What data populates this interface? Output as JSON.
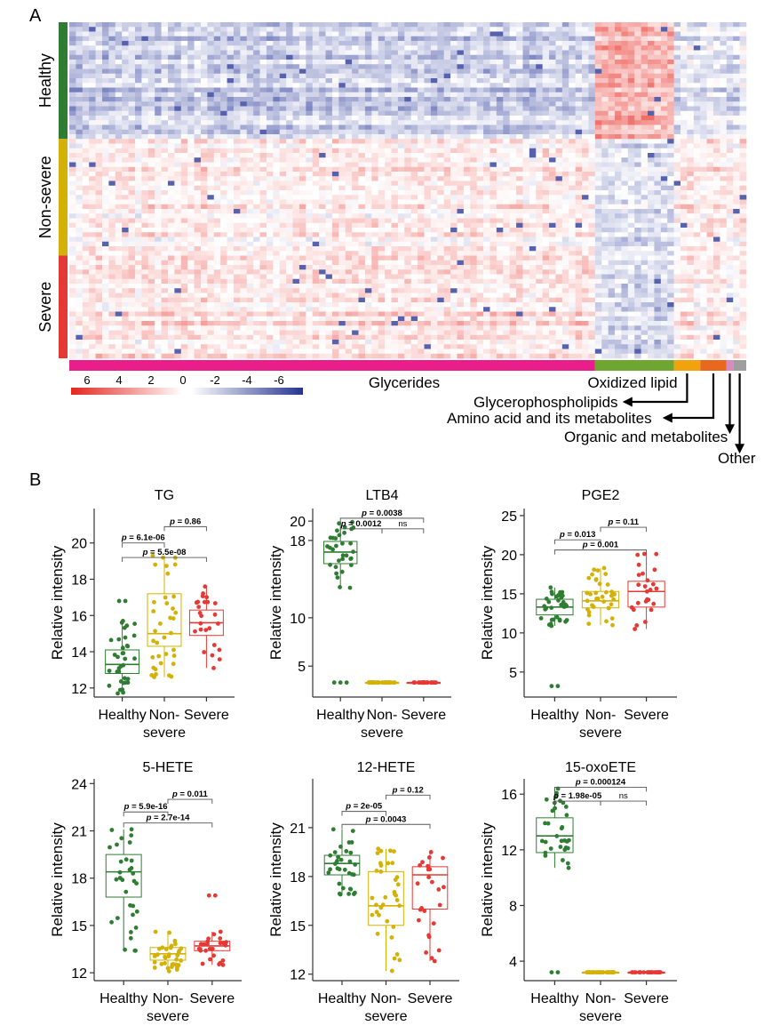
{
  "panel_labels": {
    "a": "A",
    "b": "B"
  },
  "colors": {
    "healthy": "#2e7d32",
    "nonsevere": "#d4b106",
    "severe": "#e53935",
    "glycerides": "#e91e8a",
    "oxidized": "#6fa632",
    "glycerophospholipids": "#f0a30a",
    "amino": "#e8681e",
    "organic": "#d78bc1",
    "other": "#9e9e9e",
    "heat_pos": "#e8342c",
    "heat_neg": "#2b3a9a"
  },
  "heatmap": {
    "row_groups": [
      {
        "label": "Healthy",
        "rows": 25
      },
      {
        "label": "Non-severe",
        "rows": 25
      },
      {
        "label": "Severe",
        "rows": 22
      }
    ],
    "col_groups": [
      {
        "label": "Glycerides",
        "cols": 80
      },
      {
        "label": "Oxidized lipid",
        "cols": 12
      },
      {
        "label": "Glycerophospholipids",
        "cols": 4
      },
      {
        "label": "Amino acid and its metabolites",
        "cols": 4
      },
      {
        "label": "Organic and metabolites",
        "cols": 1
      },
      {
        "label": "Other",
        "cols": 2
      }
    ],
    "scale_ticks": [
      "6",
      "4",
      "2",
      "0",
      "-2",
      "-4",
      "-6"
    ]
  },
  "chart_data": [
    {
      "type": "box",
      "title": "TG",
      "ylabel": "Relative intensity",
      "categories": [
        "Healthy",
        "Non-severe",
        "Severe"
      ],
      "yticks": [
        "12",
        "14",
        "16",
        "18",
        "20"
      ],
      "ylim": [
        11.5,
        21.9
      ],
      "boxes": [
        {
          "q1": 12.8,
          "median": 13.3,
          "q3": 14.1,
          "min": 11.7,
          "max": 15.7,
          "outliers": [
            16.8,
            16.8
          ],
          "n": 35
        },
        {
          "q1": 14.3,
          "median": 15.0,
          "q3": 17.2,
          "min": 12.6,
          "max": 19.3,
          "outliers": [],
          "n": 36
        },
        {
          "q1": 14.9,
          "median": 15.6,
          "q3": 16.3,
          "min": 13.1,
          "max": 17.6,
          "outliers": [],
          "n": 25
        }
      ],
      "comparisons": [
        {
          "from": 1,
          "to": 2,
          "label": "p = 0.86",
          "y": 20.9
        },
        {
          "from": 0,
          "to": 1,
          "label": "p = 6.1e-06",
          "y": 20.0
        },
        {
          "from": 0,
          "to": 2,
          "label": "p = 5.5e-08",
          "y": 19.2
        }
      ]
    },
    {
      "type": "box",
      "title": "LTB4",
      "ylabel": "Relative intensity",
      "categories": [
        "Healthy",
        "Non-severe",
        "Severe"
      ],
      "yticks": [
        "5",
        "10",
        "18",
        "20"
      ],
      "ylim": [
        1.8,
        21.3
      ],
      "boxes": [
        {
          "q1": 15.6,
          "median": 16.8,
          "q3": 17.9,
          "min": 13.1,
          "max": 19.9,
          "outliers": [
            3.3,
            3.3,
            3.3
          ],
          "n": 32
        },
        {
          "q1": 3.3,
          "median": 3.3,
          "q3": 3.3,
          "min": 3.3,
          "max": 3.3,
          "outliers": [],
          "n": 35
        },
        {
          "q1": 3.3,
          "median": 3.3,
          "q3": 3.3,
          "min": 3.3,
          "max": 3.3,
          "outliers": [],
          "n": 25
        }
      ],
      "comparisons": [
        {
          "from": 0,
          "to": 2,
          "label": "p = 0.0038",
          "y": 20.3
        },
        {
          "from": 0,
          "to": 1,
          "label": "p = 0.0012",
          "y": 19.2
        },
        {
          "from": 1,
          "to": 2,
          "label": "ns",
          "y": 19.2
        }
      ]
    },
    {
      "type": "box",
      "title": "PGE2",
      "ylabel": "Relative intensity",
      "categories": [
        "Healthy",
        "Non-severe",
        "Severe"
      ],
      "yticks": [
        "5",
        "10",
        "15",
        "20",
        "25"
      ],
      "ylim": [
        1.8,
        25.9
      ],
      "boxes": [
        {
          "q1": 12.3,
          "median": 13.3,
          "q3": 14.3,
          "min": 10.9,
          "max": 15.8,
          "outliers": [
            3.2,
            3.2
          ],
          "n": 35
        },
        {
          "q1": 13.2,
          "median": 14.1,
          "q3": 15.3,
          "min": 11.0,
          "max": 18.3,
          "outliers": [],
          "n": 36
        },
        {
          "q1": 13.3,
          "median": 15.3,
          "q3": 16.6,
          "min": 10.5,
          "max": 20.1,
          "outliers": [],
          "n": 25
        }
      ],
      "comparisons": [
        {
          "from": 1,
          "to": 2,
          "label": "p = 0.11",
          "y": 23.5
        },
        {
          "from": 0,
          "to": 1,
          "label": "p = 0.013",
          "y": 21.9
        },
        {
          "from": 0,
          "to": 2,
          "label": "p = 0.001",
          "y": 20.6
        }
      ]
    },
    {
      "type": "box",
      "title": "5-HETE",
      "ylabel": "Relative intensity",
      "categories": [
        "Healthy",
        "Non-severe",
        "Severe"
      ],
      "yticks": [
        "12",
        "15",
        "18",
        "21",
        "24"
      ],
      "ylim": [
        11.5,
        24.3
      ],
      "boxes": [
        {
          "q1": 16.8,
          "median": 18.4,
          "q3": 19.5,
          "min": 13.4,
          "max": 21.1,
          "outliers": [],
          "n": 32
        },
        {
          "q1": 12.8,
          "median": 13.2,
          "q3": 13.6,
          "min": 12.1,
          "max": 14.6,
          "outliers": [],
          "n": 35
        },
        {
          "q1": 13.4,
          "median": 13.7,
          "q3": 14.0,
          "min": 12.5,
          "max": 14.6,
          "outliers": [
            16.9,
            16.9
          ],
          "n": 25
        }
      ],
      "comparisons": [
        {
          "from": 1,
          "to": 2,
          "label": "p = 0.011",
          "y": 23.0
        },
        {
          "from": 0,
          "to": 1,
          "label": "p = 5.9e-16",
          "y": 22.2
        },
        {
          "from": 0,
          "to": 2,
          "label": "p = 2.7e-14",
          "y": 21.5
        }
      ]
    },
    {
      "type": "box",
      "title": "12-HETE",
      "ylabel": "Relative intensity",
      "categories": [
        "Healthy",
        "Non-severe",
        "Severe"
      ],
      "yticks": [
        "12",
        "15",
        "18",
        "21"
      ],
      "ylim": [
        11.6,
        24.0
      ],
      "boxes": [
        {
          "q1": 18.1,
          "median": 18.8,
          "q3": 19.3,
          "min": 16.9,
          "max": 20.9,
          "outliers": [],
          "n": 32
        },
        {
          "q1": 15.0,
          "median": 16.2,
          "q3": 18.3,
          "min": 12.2,
          "max": 19.7,
          "outliers": [],
          "n": 35
        },
        {
          "q1": 16.0,
          "median": 18.1,
          "q3": 18.6,
          "min": 12.8,
          "max": 19.5,
          "outliers": [],
          "n": 25
        }
      ],
      "comparisons": [
        {
          "from": 1,
          "to": 2,
          "label": "p = 0.12",
          "y": 23.0
        },
        {
          "from": 0,
          "to": 1,
          "label": "p = 2e-05",
          "y": 22.0
        },
        {
          "from": 0,
          "to": 2,
          "label": "p = 0.0043",
          "y": 21.2
        }
      ]
    },
    {
      "type": "box",
      "title": "15-oxoETE",
      "ylabel": "Relative intensity",
      "categories": [
        "Healthy",
        "Non-severe",
        "Severe"
      ],
      "yticks": [
        "4",
        "8",
        "12",
        "16"
      ],
      "ylim": [
        2.6,
        17.1
      ],
      "boxes": [
        {
          "q1": 11.8,
          "median": 13.0,
          "q3": 14.3,
          "min": 10.7,
          "max": 16.4,
          "outliers": [
            3.2,
            3.2
          ],
          "n": 32
        },
        {
          "q1": 3.2,
          "median": 3.2,
          "q3": 3.2,
          "min": 3.2,
          "max": 3.2,
          "outliers": [],
          "n": 35
        },
        {
          "q1": 3.2,
          "median": 3.2,
          "q3": 3.2,
          "min": 3.2,
          "max": 3.2,
          "outliers": [],
          "n": 25
        }
      ],
      "comparisons": [
        {
          "from": 0,
          "to": 2,
          "label": "p = 0.000124",
          "y": 16.5
        },
        {
          "from": 0,
          "to": 1,
          "label": "p = 1.98e-05",
          "y": 15.5
        },
        {
          "from": 1,
          "to": 2,
          "label": "ns",
          "y": 15.5
        }
      ]
    }
  ]
}
